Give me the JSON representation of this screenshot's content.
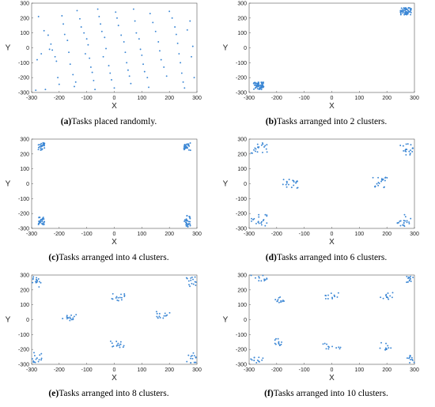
{
  "chart_data": [
    {
      "type": "scatter",
      "tag": "a",
      "caption": "Tasks placed randomly.",
      "xlabel": "X",
      "ylabel": "Y",
      "xlim": [
        -300,
        300
      ],
      "ylim": [
        -300,
        300
      ],
      "xticks": [
        -300,
        -200,
        -100,
        0,
        100,
        200,
        300
      ],
      "yticks": [
        -300,
        -200,
        -100,
        0,
        100,
        200,
        300
      ],
      "grid": false,
      "marker_color": "#3a86d4",
      "points": [
        [
          -275,
          210
        ],
        [
          -255,
          115
        ],
        [
          -240,
          85
        ],
        [
          -230,
          25
        ],
        [
          -225,
          -15
        ],
        [
          -265,
          -40
        ],
        [
          -280,
          -80
        ],
        [
          -285,
          -285
        ],
        [
          -250,
          -280
        ],
        [
          -235,
          -10
        ],
        [
          -215,
          -60
        ],
        [
          -210,
          -90
        ],
        [
          -205,
          -200
        ],
        [
          -200,
          -245
        ],
        [
          -190,
          215
        ],
        [
          -185,
          160
        ],
        [
          -180,
          90
        ],
        [
          -170,
          50
        ],
        [
          -165,
          -30
        ],
        [
          -160,
          -110
        ],
        [
          -150,
          -180
        ],
        [
          -140,
          -230
        ],
        [
          -145,
          -260
        ],
        [
          -135,
          250
        ],
        [
          -125,
          195
        ],
        [
          -120,
          140
        ],
        [
          -110,
          100
        ],
        [
          -100,
          60
        ],
        [
          -95,
          20
        ],
        [
          -105,
          -40
        ],
        [
          -90,
          -70
        ],
        [
          -85,
          -130
        ],
        [
          -80,
          -165
        ],
        [
          -75,
          -220
        ],
        [
          -70,
          -280
        ],
        [
          -60,
          260
        ],
        [
          -55,
          210
        ],
        [
          -50,
          160
        ],
        [
          -45,
          110
        ],
        [
          -35,
          70
        ],
        [
          -30,
          -5
        ],
        [
          -40,
          -60
        ],
        [
          -20,
          -120
        ],
        [
          -15,
          -170
        ],
        [
          -10,
          -215
        ],
        [
          0,
          -270
        ],
        [
          5,
          240
        ],
        [
          10,
          200
        ],
        [
          15,
          150
        ],
        [
          25,
          85
        ],
        [
          35,
          40
        ],
        [
          40,
          -30
        ],
        [
          45,
          -100
        ],
        [
          50,
          -150
        ],
        [
          55,
          -190
        ],
        [
          60,
          -240
        ],
        [
          70,
          260
        ],
        [
          75,
          180
        ],
        [
          80,
          100
        ],
        [
          90,
          60
        ],
        [
          95,
          -10
        ],
        [
          100,
          -50
        ],
        [
          105,
          -110
        ],
        [
          110,
          -160
        ],
        [
          120,
          -200
        ],
        [
          125,
          -265
        ],
        [
          130,
          230
        ],
        [
          140,
          170
        ],
        [
          150,
          110
        ],
        [
          160,
          40
        ],
        [
          165,
          -20
        ],
        [
          170,
          -80
        ],
        [
          180,
          -130
        ],
        [
          190,
          -190
        ],
        [
          200,
          245
        ],
        [
          210,
          200
        ],
        [
          220,
          140
        ],
        [
          225,
          90
        ],
        [
          230,
          30
        ],
        [
          235,
          -40
        ],
        [
          240,
          -100
        ],
        [
          245,
          -170
        ],
        [
          250,
          -230
        ],
        [
          255,
          -270
        ],
        [
          265,
          120
        ],
        [
          275,
          180
        ],
        [
          280,
          -60
        ],
        [
          285,
          10
        ],
        [
          290,
          -200
        ]
      ]
    },
    {
      "type": "scatter",
      "tag": "b",
      "caption": "Tasks arranged into 2 clusters.",
      "xlabel": "X",
      "ylabel": "Y",
      "xlim": [
        -300,
        300
      ],
      "ylim": [
        -300,
        300
      ],
      "xticks": [
        -300,
        -200,
        -100,
        0,
        100,
        200,
        300
      ],
      "yticks": [
        -300,
        -200,
        -100,
        0,
        100,
        200,
        300
      ],
      "grid": false,
      "marker_color": "#3a86d4",
      "clusters": [
        {
          "center": [
            -265,
            -255
          ],
          "spread": [
            20,
            25
          ],
          "count": 60
        },
        {
          "center": [
            268,
            245
          ],
          "spread": [
            20,
            25
          ],
          "count": 60
        }
      ]
    },
    {
      "type": "scatter",
      "tag": "c",
      "caption": "Tasks arranged into 4 clusters.",
      "xlabel": "X",
      "ylabel": "Y",
      "xlim": [
        -300,
        300
      ],
      "ylim": [
        -300,
        300
      ],
      "xticks": [
        -300,
        -200,
        -100,
        0,
        100,
        200,
        300
      ],
      "yticks": [
        -300,
        -200,
        -100,
        0,
        100,
        200,
        300
      ],
      "grid": false,
      "marker_color": "#3a86d4",
      "clusters": [
        {
          "center": [
            -265,
            250
          ],
          "spread": [
            12,
            25
          ],
          "count": 30
        },
        {
          "center": [
            265,
            250
          ],
          "spread": [
            12,
            25
          ],
          "count": 30
        },
        {
          "center": [
            -265,
            -250
          ],
          "spread": [
            12,
            25
          ],
          "count": 30
        },
        {
          "center": [
            265,
            -250
          ],
          "spread": [
            12,
            40
          ],
          "count": 30
        }
      ]
    },
    {
      "type": "scatter",
      "tag": "d",
      "caption": "Tasks arranged into 6 clusters.",
      "xlabel": "X",
      "ylabel": "Y",
      "xlim": [
        -300,
        300
      ],
      "ylim": [
        -300,
        300
      ],
      "xticks": [
        -300,
        -200,
        -100,
        0,
        100,
        200,
        300
      ],
      "yticks": [
        -300,
        -200,
        -100,
        0,
        100,
        200,
        300
      ],
      "grid": false,
      "marker_color": "#3a86d4",
      "clusters": [
        {
          "center": [
            -265,
            240
          ],
          "spread": [
            30,
            35
          ],
          "count": 20
        },
        {
          "center": [
            270,
            230
          ],
          "spread": [
            25,
            45
          ],
          "count": 20
        },
        {
          "center": [
            -150,
            0
          ],
          "spread": [
            28,
            30
          ],
          "count": 20
        },
        {
          "center": [
            175,
            10
          ],
          "spread": [
            28,
            35
          ],
          "count": 20
        },
        {
          "center": [
            -265,
            -245
          ],
          "spread": [
            30,
            40
          ],
          "count": 20
        },
        {
          "center": [
            265,
            -245
          ],
          "spread": [
            30,
            40
          ],
          "count": 20
        }
      ]
    },
    {
      "type": "scatter",
      "tag": "e",
      "caption": "Tasks arranged into 8 clusters.",
      "xlabel": "X",
      "ylabel": "Y",
      "xlim": [
        -300,
        300
      ],
      "ylim": [
        -300,
        300
      ],
      "xticks": [
        -300,
        -200,
        -100,
        0,
        100,
        200,
        300
      ],
      "yticks": [
        -300,
        -200,
        -100,
        0,
        100,
        200,
        300
      ],
      "grid": false,
      "marker_color": "#3a86d4",
      "clusters": [
        {
          "center": [
            -280,
            255
          ],
          "spread": [
            18,
            35
          ],
          "count": 15
        },
        {
          "center": [
            280,
            255
          ],
          "spread": [
            18,
            35
          ],
          "count": 15
        },
        {
          "center": [
            10,
            150
          ],
          "spread": [
            28,
            25
          ],
          "count": 15
        },
        {
          "center": [
            -165,
            15
          ],
          "spread": [
            28,
            25
          ],
          "count": 15
        },
        {
          "center": [
            175,
            30
          ],
          "spread": [
            28,
            25
          ],
          "count": 15
        },
        {
          "center": [
            10,
            -165
          ],
          "spread": [
            28,
            22
          ],
          "count": 15
        },
        {
          "center": [
            -280,
            -255
          ],
          "spread": [
            18,
            35
          ],
          "count": 15
        },
        {
          "center": [
            280,
            -255
          ],
          "spread": [
            18,
            35
          ],
          "count": 15
        }
      ]
    },
    {
      "type": "scatter",
      "tag": "f",
      "caption": "Tasks arranged into 10 clusters.",
      "xlabel": "X",
      "ylabel": "Y",
      "xlim": [
        -300,
        300
      ],
      "ylim": [
        -300,
        300
      ],
      "xticks": [
        -300,
        -200,
        -100,
        0,
        100,
        200,
        300
      ],
      "yticks": [
        -300,
        -200,
        -100,
        0,
        100,
        200,
        300
      ],
      "grid": false,
      "marker_color": "#3a86d4",
      "clusters": [
        {
          "center": [
            -265,
            280
          ],
          "spread": [
            30,
            20
          ],
          "count": 12
        },
        {
          "center": [
            285,
            270
          ],
          "spread": [
            15,
            30
          ],
          "count": 12
        },
        {
          "center": [
            -190,
            135
          ],
          "spread": [
            25,
            20
          ],
          "count": 12
        },
        {
          "center": [
            0,
            160
          ],
          "spread": [
            25,
            20
          ],
          "count": 12
        },
        {
          "center": [
            200,
            160
          ],
          "spread": [
            25,
            25
          ],
          "count": 12
        },
        {
          "center": [
            -195,
            -150
          ],
          "spread": [
            15,
            25
          ],
          "count": 12
        },
        {
          "center": [
            0,
            -175
          ],
          "spread": [
            35,
            25
          ],
          "count": 12
        },
        {
          "center": [
            200,
            -175
          ],
          "spread": [
            25,
            30
          ],
          "count": 12
        },
        {
          "center": [
            -275,
            -270
          ],
          "spread": [
            25,
            20
          ],
          "count": 12
        },
        {
          "center": [
            285,
            -265
          ],
          "spread": [
            15,
            25
          ],
          "count": 12
        }
      ]
    }
  ]
}
